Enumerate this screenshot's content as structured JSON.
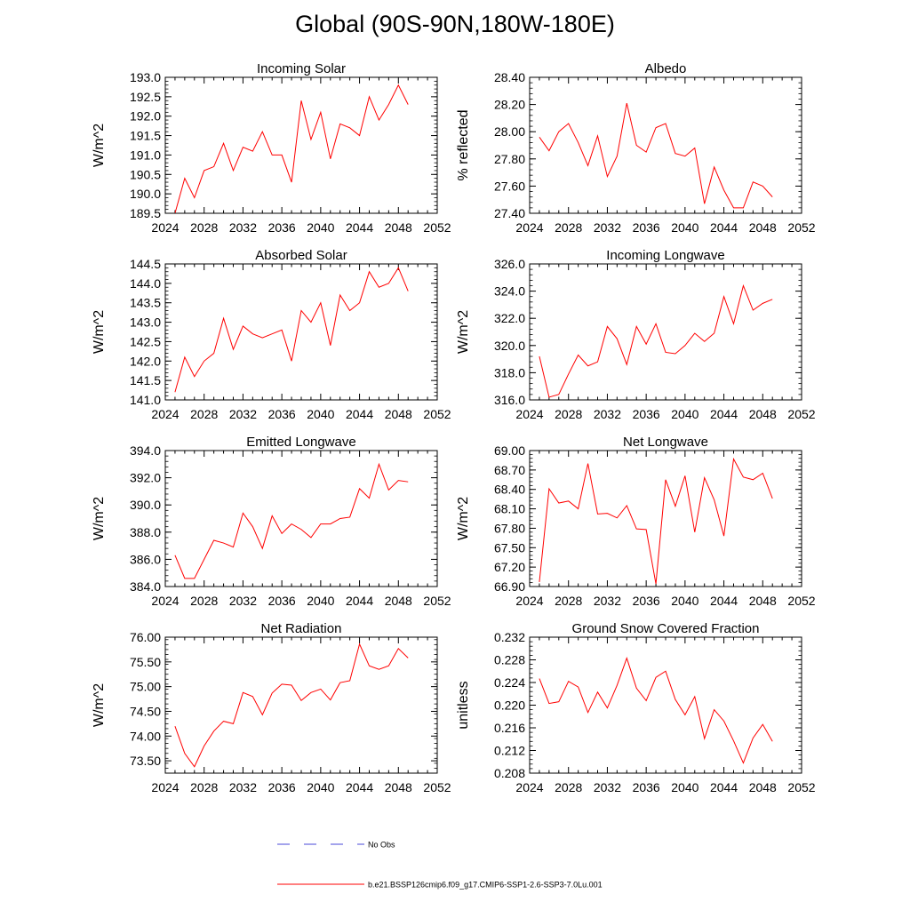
{
  "title": "Global (90S-90N,180W-180E)",
  "legend": {
    "items": [
      {
        "label": "No Obs",
        "color": "#4a4ad8",
        "style": "dashed"
      },
      {
        "label": "b.e21.BSSP126cmip6.f09_g17.CMIP6-SSP1-2.6-SSP3-7.0Lu.001",
        "color": "#ff0000",
        "style": "solid"
      }
    ]
  },
  "chart_data": [
    {
      "type": "line",
      "title": "Incoming Solar",
      "xlabel": "",
      "ylabel": "W/m^2",
      "xlim": [
        2024,
        2052
      ],
      "ylim": [
        189.5,
        193.0
      ],
      "xticks": [
        "2024",
        "2028",
        "2032",
        "2036",
        "2040",
        "2044",
        "2048",
        "2052"
      ],
      "yticks": [
        "189.5",
        "190.0",
        "190.5",
        "191.0",
        "191.5",
        "192.0",
        "192.5",
        "193.0"
      ],
      "series": [
        {
          "color": "#ff0000",
          "x": [
            2025,
            2026,
            2027,
            2028,
            2029,
            2030,
            2031,
            2032,
            2033,
            2034,
            2035,
            2036,
            2037,
            2038,
            2039,
            2040,
            2041,
            2042,
            2043,
            2044,
            2045,
            2046,
            2047,
            2048,
            2049
          ],
          "y": [
            189.5,
            190.4,
            189.9,
            190.6,
            190.7,
            191.3,
            190.6,
            191.2,
            191.1,
            191.6,
            191.0,
            191.0,
            190.3,
            192.4,
            191.4,
            192.1,
            190.9,
            191.8,
            191.7,
            191.5,
            192.5,
            191.9,
            192.3,
            192.8,
            192.3
          ]
        }
      ]
    },
    {
      "type": "line",
      "title": "Albedo",
      "xlabel": "",
      "ylabel": "% reflected",
      "xlim": [
        2024,
        2052
      ],
      "ylim": [
        27.4,
        28.4
      ],
      "xticks": [
        "2024",
        "2028",
        "2032",
        "2036",
        "2040",
        "2044",
        "2048",
        "2052"
      ],
      "yticks": [
        "27.40",
        "27.60",
        "27.80",
        "28.00",
        "28.20",
        "28.40"
      ],
      "series": [
        {
          "color": "#ff0000",
          "x": [
            2025,
            2026,
            2027,
            2028,
            2029,
            2030,
            2031,
            2032,
            2033,
            2034,
            2035,
            2036,
            2037,
            2038,
            2039,
            2040,
            2041,
            2042,
            2043,
            2044,
            2045,
            2046,
            2047,
            2048,
            2049
          ],
          "y": [
            27.96,
            27.86,
            28.0,
            28.06,
            27.92,
            27.75,
            27.97,
            27.67,
            27.82,
            28.21,
            27.9,
            27.85,
            28.03,
            28.06,
            27.84,
            27.82,
            27.88,
            27.47,
            27.74,
            27.57,
            27.44,
            27.44,
            27.63,
            27.6,
            27.52
          ]
        }
      ]
    },
    {
      "type": "line",
      "title": "Absorbed Solar",
      "xlabel": "",
      "ylabel": "W/m^2",
      "xlim": [
        2024,
        2052
      ],
      "ylim": [
        141.0,
        144.5
      ],
      "xticks": [
        "2024",
        "2028",
        "2032",
        "2036",
        "2040",
        "2044",
        "2048",
        "2052"
      ],
      "yticks": [
        "141.0",
        "141.5",
        "142.0",
        "142.5",
        "143.0",
        "143.5",
        "144.0",
        "144.5"
      ],
      "series": [
        {
          "color": "#ff0000",
          "x": [
            2025,
            2026,
            2027,
            2028,
            2029,
            2030,
            2031,
            2032,
            2033,
            2034,
            2035,
            2036,
            2037,
            2038,
            2039,
            2040,
            2041,
            2042,
            2043,
            2044,
            2045,
            2046,
            2047,
            2048,
            2049
          ],
          "y": [
            141.2,
            142.1,
            141.6,
            142.0,
            142.2,
            143.1,
            142.3,
            142.9,
            142.7,
            142.6,
            142.7,
            142.8,
            142.0,
            143.3,
            143.0,
            143.5,
            142.4,
            143.7,
            143.3,
            143.5,
            144.3,
            143.9,
            144.0,
            144.4,
            143.8
          ]
        }
      ]
    },
    {
      "type": "line",
      "title": "Incoming Longwave",
      "xlabel": "",
      "ylabel": "W/m^2",
      "xlim": [
        2024,
        2052
      ],
      "ylim": [
        316.0,
        326.0
      ],
      "xticks": [
        "2024",
        "2028",
        "2032",
        "2036",
        "2040",
        "2044",
        "2048",
        "2052"
      ],
      "yticks": [
        "316.0",
        "318.0",
        "320.0",
        "322.0",
        "324.0",
        "326.0"
      ],
      "series": [
        {
          "color": "#ff0000",
          "x": [
            2025,
            2026,
            2027,
            2028,
            2029,
            2030,
            2031,
            2032,
            2033,
            2034,
            2035,
            2036,
            2037,
            2038,
            2039,
            2040,
            2041,
            2042,
            2043,
            2044,
            2045,
            2046,
            2047,
            2048,
            2049
          ],
          "y": [
            319.2,
            316.2,
            316.4,
            317.9,
            319.3,
            318.5,
            318.8,
            321.4,
            320.5,
            318.6,
            321.4,
            320.1,
            321.6,
            319.5,
            319.4,
            320.0,
            320.9,
            320.3,
            320.9,
            323.6,
            321.6,
            324.4,
            322.6,
            323.1,
            323.4
          ]
        }
      ]
    },
    {
      "type": "line",
      "title": "Emitted Longwave",
      "xlabel": "",
      "ylabel": "W/m^2",
      "xlim": [
        2024,
        2052
      ],
      "ylim": [
        384.0,
        394.0
      ],
      "xticks": [
        "2024",
        "2028",
        "2032",
        "2036",
        "2040",
        "2044",
        "2048",
        "2052"
      ],
      "yticks": [
        "384.0",
        "386.0",
        "388.0",
        "390.0",
        "392.0",
        "394.0"
      ],
      "series": [
        {
          "color": "#ff0000",
          "x": [
            2025,
            2026,
            2027,
            2028,
            2029,
            2030,
            2031,
            2032,
            2033,
            2034,
            2035,
            2036,
            2037,
            2038,
            2039,
            2040,
            2041,
            2042,
            2043,
            2044,
            2045,
            2046,
            2047,
            2048,
            2049
          ],
          "y": [
            386.3,
            384.6,
            384.6,
            386.0,
            387.4,
            387.2,
            386.9,
            389.4,
            388.4,
            386.8,
            389.2,
            387.9,
            388.6,
            388.2,
            387.6,
            388.6,
            388.6,
            389.0,
            389.1,
            391.2,
            390.5,
            393.0,
            391.1,
            391.8,
            391.7
          ]
        }
      ]
    },
    {
      "type": "line",
      "title": "Net Longwave",
      "xlabel": "",
      "ylabel": "W/m^2",
      "xlim": [
        2024,
        2052
      ],
      "ylim": [
        66.9,
        69.0
      ],
      "xticks": [
        "2024",
        "2028",
        "2032",
        "2036",
        "2040",
        "2044",
        "2048",
        "2052"
      ],
      "yticks": [
        "66.90",
        "67.20",
        "67.50",
        "67.80",
        "68.10",
        "68.40",
        "68.70",
        "69.00"
      ],
      "series": [
        {
          "color": "#ff0000",
          "x": [
            2025,
            2026,
            2027,
            2028,
            2029,
            2030,
            2031,
            2032,
            2033,
            2034,
            2035,
            2036,
            2037,
            2038,
            2039,
            2040,
            2041,
            2042,
            2043,
            2044,
            2045,
            2046,
            2047,
            2048,
            2049
          ],
          "y": [
            66.97,
            68.41,
            68.19,
            68.22,
            68.1,
            68.8,
            68.02,
            68.03,
            67.96,
            68.15,
            67.79,
            67.78,
            66.94,
            68.55,
            68.14,
            68.61,
            67.74,
            68.58,
            68.24,
            67.68,
            68.87,
            68.59,
            68.55,
            68.65,
            68.26
          ]
        }
      ]
    },
    {
      "type": "line",
      "title": "Net Radiation",
      "xlabel": "",
      "ylabel": "W/m^2",
      "xlim": [
        2024,
        2052
      ],
      "ylim": [
        73.25,
        76.0
      ],
      "xticks": [
        "2024",
        "2028",
        "2032",
        "2036",
        "2040",
        "2044",
        "2048",
        "2052"
      ],
      "yticks": [
        "73.50",
        "74.00",
        "74.50",
        "75.00",
        "75.50",
        "76.00"
      ],
      "series": [
        {
          "color": "#ff0000",
          "x": [
            2025,
            2026,
            2027,
            2028,
            2029,
            2030,
            2031,
            2032,
            2033,
            2034,
            2035,
            2036,
            2037,
            2038,
            2039,
            2040,
            2041,
            2042,
            2043,
            2044,
            2045,
            2046,
            2047,
            2048,
            2049
          ],
          "y": [
            74.2,
            73.65,
            73.38,
            73.8,
            74.1,
            74.3,
            74.25,
            74.88,
            74.8,
            74.43,
            74.87,
            75.05,
            75.03,
            74.72,
            74.88,
            74.95,
            74.73,
            75.08,
            75.12,
            75.86,
            75.42,
            75.35,
            75.42,
            75.77,
            75.58
          ]
        }
      ]
    },
    {
      "type": "line",
      "title": "Ground Snow Covered Fraction",
      "xlabel": "",
      "ylabel": "unitless",
      "xlim": [
        2024,
        2052
      ],
      "ylim": [
        0.208,
        0.232
      ],
      "xticks": [
        "2024",
        "2028",
        "2032",
        "2036",
        "2040",
        "2044",
        "2048",
        "2052"
      ],
      "yticks": [
        "0.208",
        "0.212",
        "0.216",
        "0.220",
        "0.224",
        "0.228",
        "0.232"
      ],
      "series": [
        {
          "color": "#ff0000",
          "x": [
            2025,
            2026,
            2027,
            2028,
            2029,
            2030,
            2031,
            2032,
            2033,
            2034,
            2035,
            2036,
            2037,
            2038,
            2039,
            2040,
            2041,
            2042,
            2043,
            2044,
            2045,
            2046,
            2047,
            2048,
            2049
          ],
          "y": [
            0.2247,
            0.2203,
            0.2206,
            0.2242,
            0.2232,
            0.2187,
            0.2223,
            0.2195,
            0.2235,
            0.2283,
            0.223,
            0.2208,
            0.2249,
            0.226,
            0.221,
            0.2183,
            0.2215,
            0.2141,
            0.2192,
            0.2172,
            0.2137,
            0.2098,
            0.2142,
            0.2166,
            0.2136
          ]
        }
      ]
    }
  ]
}
